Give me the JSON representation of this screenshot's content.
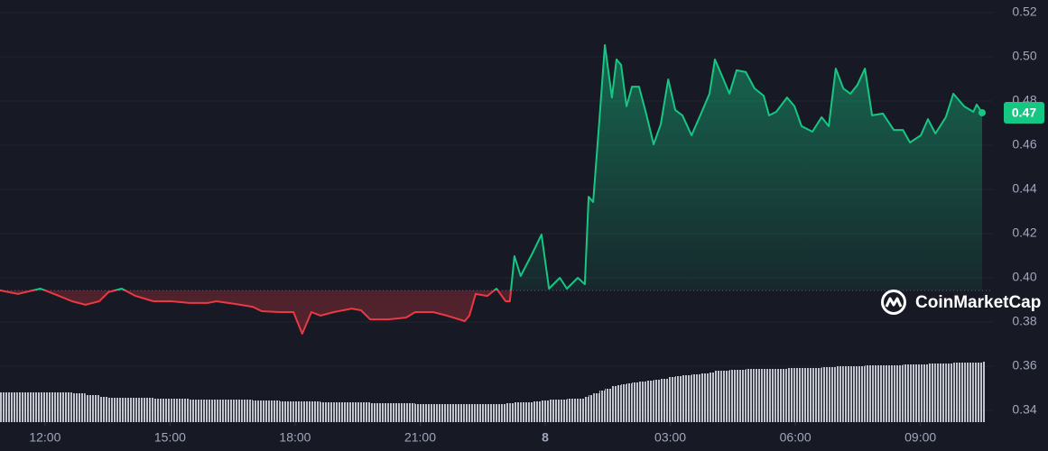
{
  "chart_data": {
    "type": "line",
    "x": [
      10.92,
      11.35,
      11.89,
      12.22,
      12.65,
      12.97,
      13.3,
      13.52,
      13.84,
      14.17,
      14.6,
      15.03,
      15.47,
      15.9,
      16.11,
      16.55,
      16.98,
      17.2,
      17.63,
      17.96,
      18.17,
      18.39,
      18.61,
      18.93,
      19.36,
      19.58,
      19.8,
      20.23,
      20.66,
      20.88,
      21.31,
      21.64,
      22.07,
      22.18,
      22.33,
      22.61,
      22.83,
      23.05,
      23.15,
      23.26,
      23.41,
      23.7,
      23.91,
      24.09,
      24.35,
      24.52,
      24.78,
      24.95,
      25.04,
      25.15,
      25.3,
      25.43,
      25.6,
      25.71,
      25.82,
      25.95,
      26.08,
      26.25,
      26.42,
      26.6,
      26.77,
      26.95,
      27.12,
      27.29,
      27.51,
      27.72,
      27.94,
      28.07,
      28.24,
      28.42,
      28.59,
      28.81,
      29.02,
      29.24,
      29.37,
      29.54,
      29.8,
      29.98,
      30.15,
      30.41,
      30.63,
      30.8,
      30.97,
      31.15,
      31.32,
      31.49,
      31.67,
      31.84,
      32.1,
      32.36,
      32.58,
      32.75,
      33.01,
      33.18,
      33.36,
      33.61,
      33.79,
      34.05,
      34.27,
      34.35,
      34.48
    ],
    "values": [
      0.3943,
      0.3927,
      0.3951,
      0.3927,
      0.3894,
      0.3878,
      0.3894,
      0.3935,
      0.3951,
      0.3918,
      0.3894,
      0.3894,
      0.3886,
      0.3886,
      0.3894,
      0.3882,
      0.3869,
      0.3849,
      0.3845,
      0.3845,
      0.3747,
      0.3845,
      0.3829,
      0.3845,
      0.3861,
      0.3853,
      0.3812,
      0.3812,
      0.382,
      0.3845,
      0.3845,
      0.3829,
      0.3804,
      0.3829,
      0.3927,
      0.3918,
      0.3951,
      0.3894,
      0.3894,
      0.4098,
      0.4008,
      0.4114,
      0.4196,
      0.3951,
      0.4,
      0.3951,
      0.4,
      0.3971,
      0.4367,
      0.4343,
      0.4718,
      0.5053,
      0.4816,
      0.4988,
      0.4963,
      0.4776,
      0.4865,
      0.4865,
      0.4743,
      0.4604,
      0.4694,
      0.4898,
      0.4759,
      0.4735,
      0.4645,
      0.4735,
      0.4833,
      0.4988,
      0.4914,
      0.4833,
      0.4939,
      0.4931,
      0.4857,
      0.4824,
      0.4735,
      0.4751,
      0.4816,
      0.4776,
      0.4686,
      0.4661,
      0.4727,
      0.4686,
      0.4947,
      0.4857,
      0.4833,
      0.4873,
      0.4947,
      0.4735,
      0.4743,
      0.4669,
      0.4669,
      0.4612,
      0.4645,
      0.4718,
      0.4653,
      0.4727,
      0.4833,
      0.4776,
      0.4751,
      0.4784,
      0.4747
    ],
    "volume": [
      33,
      33,
      33,
      33,
      32,
      30,
      28,
      27,
      27,
      27,
      26,
      26,
      25,
      25,
      25,
      25,
      24,
      24,
      23,
      23,
      23,
      23,
      22,
      22,
      22,
      22,
      21,
      21,
      21,
      20,
      20,
      20,
      20,
      20,
      20,
      20,
      20,
      21,
      21,
      22,
      22,
      23,
      24,
      25,
      25,
      26,
      26,
      28,
      30,
      32,
      35,
      37,
      40,
      41,
      42,
      43,
      44,
      45,
      46,
      47,
      48,
      50,
      51,
      52,
      53,
      54,
      55,
      57,
      57,
      58,
      58,
      59,
      59,
      59,
      59,
      59,
      60,
      60,
      60,
      60,
      61,
      61,
      62,
      62,
      62,
      62,
      63,
      63,
      63,
      63,
      64,
      64,
      64,
      65,
      65,
      65,
      66,
      66,
      66,
      66,
      67
    ],
    "volume_lim": [
      0,
      100
    ],
    "baseline": 0.3943,
    "up_color": "#16c784",
    "down_color": "#ea3943",
    "volume_color": "#d5d8e0",
    "current_price_label": "0.47",
    "watermark": "CoinMarketCap",
    "xlim": [
      10.92,
      34.48
    ],
    "xticks": [
      {
        "value": 12,
        "label": "12:00"
      },
      {
        "value": 15,
        "label": "15:00"
      },
      {
        "value": 18,
        "label": "18:00"
      },
      {
        "value": 21,
        "label": "21:00"
      },
      {
        "value": 24,
        "label": "8"
      },
      {
        "value": 27,
        "label": "03:00"
      },
      {
        "value": 30,
        "label": "06:00"
      },
      {
        "value": 33,
        "label": "09:00"
      }
    ],
    "ylim": [
      0.3347,
      0.5257
    ],
    "yticks": [
      {
        "value": 0.34,
        "label": "0.34"
      },
      {
        "value": 0.36,
        "label": "0.36"
      },
      {
        "value": 0.38,
        "label": "0.38"
      },
      {
        "value": 0.4,
        "label": "0.40"
      },
      {
        "value": 0.42,
        "label": "0.42"
      },
      {
        "value": 0.44,
        "label": "0.44"
      },
      {
        "value": 0.46,
        "label": "0.46"
      },
      {
        "value": 0.48,
        "label": "0.48"
      },
      {
        "value": 0.5,
        "label": "0.50"
      },
      {
        "value": 0.52,
        "label": "0.52"
      }
    ],
    "grid": true
  }
}
